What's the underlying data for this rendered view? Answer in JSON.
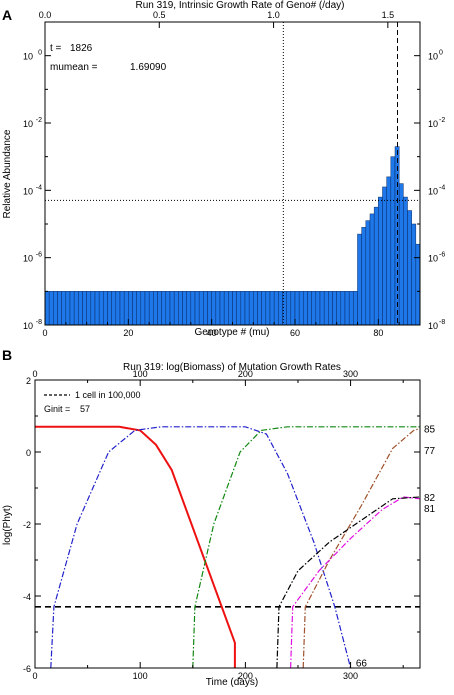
{
  "chart_data": [
    {
      "panel": "A",
      "type": "bar",
      "title": "Run 319, Intrinsic Growth Rate of Geno# (/day)",
      "xlabel": "Genotype # (mu)",
      "ylabel": "Relative Abundance",
      "xlim": [
        0,
        90
      ],
      "ylim_log10": [
        -8,
        1
      ],
      "yscale": "log",
      "x_ticks": [
        0,
        20,
        40,
        60,
        80
      ],
      "top_axis": {
        "ticks": [
          0,
          0.5,
          1.0,
          1.5
        ],
        "labels": [
          "0.0",
          "0.5",
          "1.0",
          "1.5"
        ],
        "units_per_genotype": 0.01823
      },
      "y_tick_labels": [
        {
          "exp": 0,
          "label": "10",
          "sup": "0"
        },
        {
          "exp": -2,
          "label": "10",
          "sup": "-2"
        },
        {
          "exp": -4,
          "label": "10",
          "sup": "-4"
        },
        {
          "exp": -6,
          "label": "10",
          "sup": "-6"
        },
        {
          "exp": -8,
          "label": "10",
          "sup": "-8"
        }
      ],
      "annotations": [
        {
          "label": "t =",
          "value": "1826"
        },
        {
          "label": "mumean =",
          "value": "1.69090"
        }
      ],
      "reference_lines": {
        "vertical_dotted_x": 57.2,
        "vertical_dashed_x": 84.6,
        "horizontal_dotted_log10": -4.3
      },
      "bar_color": "#1e78ea",
      "bar_start": 0,
      "bar_log10_values": [
        -7.0,
        -7.0,
        -7.0,
        -7.0,
        -7.0,
        -7.0,
        -7.0,
        -7.0,
        -7.0,
        -7.0,
        -7.0,
        -7.0,
        -7.0,
        -7.0,
        -7.0,
        -7.0,
        -7.0,
        -7.0,
        -7.0,
        -7.0,
        -7.0,
        -7.0,
        -7.0,
        -7.0,
        -7.0,
        -7.0,
        -7.0,
        -7.0,
        -7.0,
        -7.0,
        -7.0,
        -7.0,
        -7.0,
        -7.0,
        -7.0,
        -7.0,
        -7.0,
        -7.0,
        -7.0,
        -7.0,
        -7.0,
        -7.0,
        -7.0,
        -7.0,
        -7.0,
        -7.0,
        -7.0,
        -7.0,
        -7.0,
        -7.0,
        -7.0,
        -7.0,
        -7.0,
        -7.0,
        -7.0,
        -7.0,
        -7.0,
        -7.0,
        -7.0,
        -7.0,
        -7.0,
        -7.0,
        -7.0,
        -7.0,
        -7.0,
        -7.0,
        -7.0,
        -7.0,
        -7.0,
        -7.0,
        -7.0,
        -7.0,
        -7.0,
        -7.0,
        -7.0,
        -5.3,
        -5.1,
        -4.9,
        -4.7,
        -4.5,
        -4.2,
        -3.9,
        -3.6,
        -3.0,
        -2.7,
        -3.8,
        -4.2,
        -4.6,
        -5.0,
        -5.6
      ]
    },
    {
      "panel": "B",
      "type": "line",
      "title": "Run 319: log(Biomass) of Mutation Growth Rates",
      "xlabel": "Time (days)",
      "ylabel": "log(Phyt)",
      "xlim": [
        0,
        366
      ],
      "ylim": [
        -6,
        2
      ],
      "x_ticks": [
        0,
        100,
        200,
        300
      ],
      "y_ticks": [
        2,
        0,
        -2,
        -4,
        -6
      ],
      "top_axis": {
        "ticks": [
          0,
          100,
          200,
          300
        ]
      },
      "legend": [
        {
          "label": "1 cell in 100,000",
          "style": "dashed"
        },
        {
          "label": "Ginit =",
          "value": "57"
        }
      ],
      "threshold": -4.3,
      "series": [
        {
          "name": "57",
          "color": "#ee1111",
          "dash": "solid",
          "labeled": false,
          "points": [
            [
              0,
              0.7
            ],
            [
              80,
              0.7
            ],
            [
              100,
              0.6
            ],
            [
              115,
              0.2
            ],
            [
              130,
              -0.5
            ],
            [
              190,
              -5.3
            ],
            [
              190,
              -6
            ]
          ]
        },
        {
          "name": "66",
          "color": "#2222cc",
          "dash": "dashdot",
          "labeled": true,
          "points": [
            [
              15,
              -6
            ],
            [
              18,
              -4.3
            ],
            [
              40,
              -2
            ],
            [
              70,
              0
            ],
            [
              95,
              0.6
            ],
            [
              120,
              0.7
            ],
            [
              200,
              0.7
            ],
            [
              220,
              0.5
            ],
            [
              240,
              -0.6
            ],
            [
              265,
              -2.5
            ],
            [
              285,
              -4.3
            ],
            [
              300,
              -6
            ]
          ]
        },
        {
          "name": "77",
          "color": "#118811",
          "dash": "dashdot",
          "labeled": true,
          "points": [
            [
              150,
              -6
            ],
            [
              152,
              -4.3
            ],
            [
              170,
              -2
            ],
            [
              195,
              0
            ],
            [
              215,
              0.6
            ],
            [
              240,
              0.7
            ],
            [
              366,
              0.7
            ]
          ]
        },
        {
          "name": "85",
          "color": "#a0522d",
          "dash": "dashdot",
          "labeled": true,
          "points": [
            [
              255,
              -6
            ],
            [
              257,
              -4.3
            ],
            [
              280,
              -3
            ],
            [
              310,
              -1.5
            ],
            [
              340,
              0.1
            ],
            [
              360,
              0.6
            ],
            [
              366,
              0.65
            ]
          ]
        },
        {
          "name": "82",
          "color": "#e010e0",
          "dash": "dashdot",
          "labeled": true,
          "points": [
            [
              243,
              -6
            ],
            [
              245,
              -4.3
            ],
            [
              270,
              -3.3
            ],
            [
              300,
              -2.4
            ],
            [
              330,
              -1.6
            ],
            [
              350,
              -1.25
            ],
            [
              366,
              -1.3
            ]
          ]
        },
        {
          "name": "81",
          "color": "#000000",
          "dash": "dashdot",
          "labeled": true,
          "points": [
            [
              230,
              -6
            ],
            [
              232,
              -4.3
            ],
            [
              250,
              -3.3
            ],
            [
              280,
              -2.5
            ],
            [
              310,
              -1.9
            ],
            [
              340,
              -1.3
            ],
            [
              366,
              -1.25
            ]
          ]
        }
      ],
      "series_label_anchor_y": {
        "85": 0.65,
        "77": 0.05,
        "82": -1.25,
        "81": -1.55,
        "66": -5.85
      }
    }
  ],
  "panel_labels": [
    "A",
    "B"
  ]
}
